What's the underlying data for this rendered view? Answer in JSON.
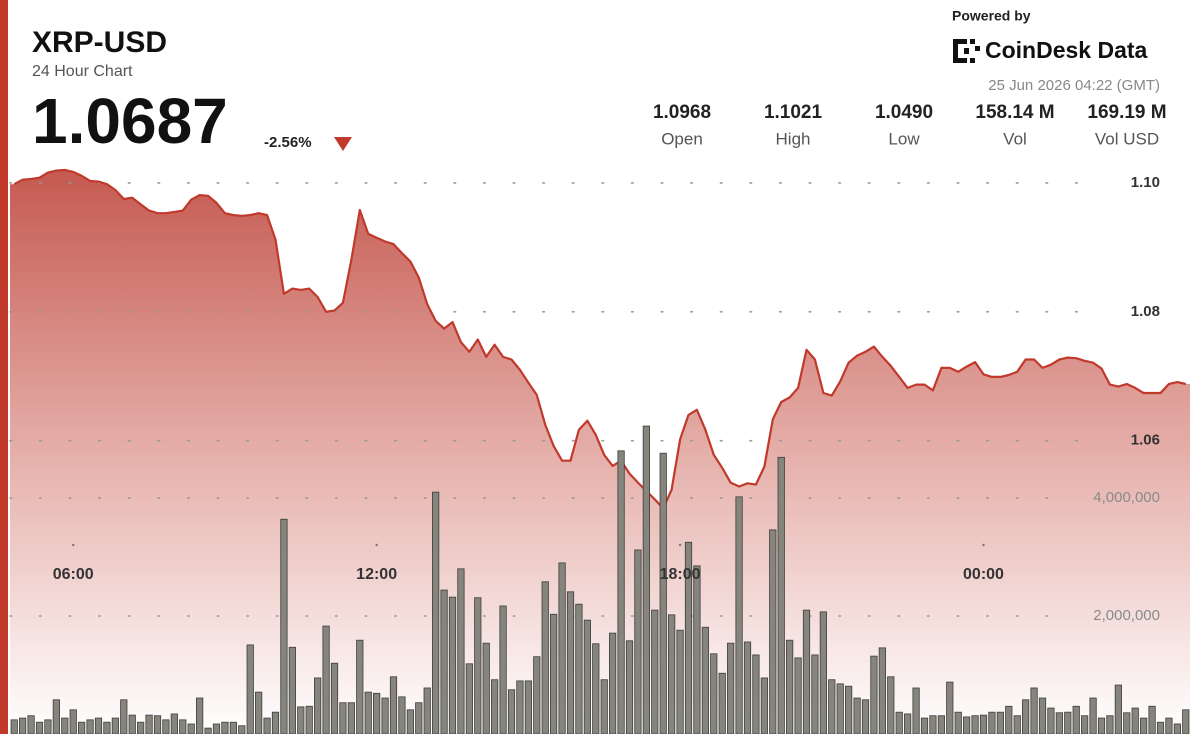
{
  "chart_data": {
    "type": "line",
    "title": "XRP-USD",
    "subtitle": "24 Hour Chart",
    "price": "1.0687",
    "change": "-2.56%",
    "powered_by": "Powered by",
    "brand": "CoinDesk Data",
    "timestamp": "25 Jun 2026 04:22 (GMT)",
    "stats": [
      {
        "value": "1.0968",
        "label": "Open"
      },
      {
        "value": "1.1021",
        "label": "High"
      },
      {
        "value": "1.0490",
        "label": "Low"
      },
      {
        "value": "158.14 M",
        "label": "Vol"
      },
      {
        "value": "169.19 M",
        "label": "Vol USD"
      }
    ],
    "categories": [
      null,
      null,
      null,
      null,
      null,
      null,
      null,
      "06:00",
      null,
      null,
      null,
      null,
      null,
      null,
      null,
      null,
      null,
      null,
      null,
      null,
      null,
      null,
      null,
      null,
      null,
      null,
      null,
      null,
      null,
      null,
      null,
      null,
      null,
      null,
      null,
      null,
      null,
      null,
      null,
      null,
      null,
      null,
      null,
      "12:00",
      null,
      null,
      null,
      null,
      null,
      null,
      null,
      null,
      null,
      null,
      null,
      null,
      null,
      null,
      null,
      null,
      null,
      null,
      null,
      null,
      null,
      null,
      null,
      null,
      null,
      null,
      null,
      null,
      null,
      null,
      null,
      null,
      null,
      null,
      null,
      "18:00",
      null,
      null,
      null,
      null,
      null,
      null,
      null,
      null,
      null,
      null,
      null,
      null,
      null,
      null,
      null,
      null,
      null,
      null,
      null,
      null,
      null,
      null,
      null,
      null,
      null,
      null,
      null,
      null,
      null,
      null,
      null,
      null,
      null,
      null,
      null,
      "00:00",
      null,
      null,
      null,
      null,
      null,
      null,
      null,
      null,
      null,
      null,
      null,
      null,
      null,
      null,
      null,
      null,
      null,
      null,
      null,
      null,
      null,
      null,
      null,
      null
    ],
    "series": [
      {
        "type": "area",
        "axis": "y",
        "color": "#c0392b",
        "values": [
          1.0998,
          1.1005,
          1.1006,
          1.1008,
          1.1016,
          1.1019,
          1.102,
          1.1017,
          1.1011,
          1.1003,
          1.1002,
          1.0998,
          1.0989,
          1.0975,
          1.0977,
          1.0967,
          1.0957,
          1.0953,
          1.0953,
          1.0955,
          1.0957,
          1.0974,
          1.0981,
          1.098,
          1.0969,
          1.0953,
          1.095,
          1.0949,
          1.095,
          1.0953,
          1.095,
          1.0912,
          1.0828,
          1.0836,
          1.0834,
          1.0836,
          1.0823,
          1.08,
          1.0802,
          1.0814,
          1.0881,
          1.0958,
          1.0921,
          1.0915,
          1.0909,
          1.0905,
          1.0891,
          1.0878,
          1.0853,
          1.0812,
          1.0786,
          1.0774,
          1.0784,
          1.0753,
          1.0738,
          1.0757,
          1.073,
          1.0749,
          1.073,
          1.0726,
          1.071,
          1.069,
          1.0671,
          1.0625,
          1.0592,
          1.0569,
          1.0569,
          1.0617,
          1.0631,
          1.0609,
          1.0578,
          1.0561,
          1.0569,
          1.0549,
          1.0535,
          1.0522,
          1.0509,
          1.0495,
          1.0524,
          1.0602,
          1.064,
          1.0648,
          1.0617,
          1.0578,
          1.0558,
          1.0535,
          1.0529,
          1.0534,
          1.0532,
          1.056,
          1.0633,
          1.066,
          1.0667,
          1.0682,
          1.0741,
          1.0726,
          1.0674,
          1.067,
          1.0692,
          1.0721,
          1.0732,
          1.0738,
          1.0746,
          1.073,
          1.0716,
          1.0699,
          1.0682,
          1.0687,
          1.0687,
          1.0678,
          1.0713,
          1.0713,
          1.0707,
          1.0715,
          1.0722,
          1.0703,
          1.0699,
          1.0699,
          1.0702,
          1.0707,
          1.0726,
          1.0726,
          1.0713,
          1.0718,
          1.0726,
          1.0729,
          1.0728,
          1.0724,
          1.0721,
          1.0712,
          1.0687,
          1.0684,
          1.0688,
          1.0682,
          1.0674,
          1.0674,
          1.0674,
          1.0688,
          1.0691,
          1.0688
        ]
      },
      {
        "type": "bar",
        "axis": "y2",
        "color": "#85857d",
        "values": [
          240000,
          270000,
          310000,
          200000,
          240000,
          580000,
          270000,
          410000,
          200000,
          240000,
          270000,
          200000,
          270000,
          580000,
          320000,
          200000,
          320000,
          310000,
          240000,
          340000,
          240000,
          170000,
          610000,
          100000,
          170000,
          200000,
          200000,
          140000,
          1510000,
          710000,
          270000,
          370000,
          3640000,
          1470000,
          460000,
          470000,
          950000,
          1830000,
          1200000,
          530000,
          530000,
          1590000,
          710000,
          690000,
          610000,
          970000,
          630000,
          410000,
          530000,
          780000,
          4100000,
          2440000,
          2320000,
          2800000,
          1190000,
          2310000,
          1540000,
          920000,
          2170000,
          750000,
          900000,
          900000,
          1310000,
          2580000,
          2030000,
          2900000,
          2410000,
          2200000,
          1930000,
          1530000,
          920000,
          1710000,
          4800000,
          1580000,
          3120000,
          5220000,
          2100000,
          4760000,
          2020000,
          1760000,
          3250000,
          2850000,
          1810000,
          1360000,
          1030000,
          1540000,
          4020000,
          1560000,
          1340000,
          950000,
          3460000,
          4690000,
          1590000,
          1290000,
          2100000,
          1340000,
          2070000,
          920000,
          850000,
          810000,
          610000,
          580000,
          1320000,
          1460000,
          970000,
          370000,
          340000,
          780000,
          270000,
          310000,
          310000,
          880000,
          370000,
          290000,
          310000,
          320000,
          370000,
          370000,
          470000,
          310000,
          580000,
          780000,
          610000,
          440000,
          360000,
          370000,
          470000,
          310000,
          610000,
          270000,
          310000,
          830000,
          360000,
          440000,
          270000,
          470000,
          200000,
          270000,
          170000,
          410000
        ]
      }
    ],
    "ylim": [
      1.0145,
      1.102
    ],
    "yticks": [
      1.06,
      1.08,
      {
        "value": 1.1,
        "label": "1.10"
      }
    ],
    "y2lim": [
      0,
      9560000
    ],
    "y2ticks": [
      {
        "value": 2000000,
        "label": "2,000,000"
      },
      {
        "value": 4000000,
        "label": "4,000,000"
      }
    ],
    "grid": true
  }
}
